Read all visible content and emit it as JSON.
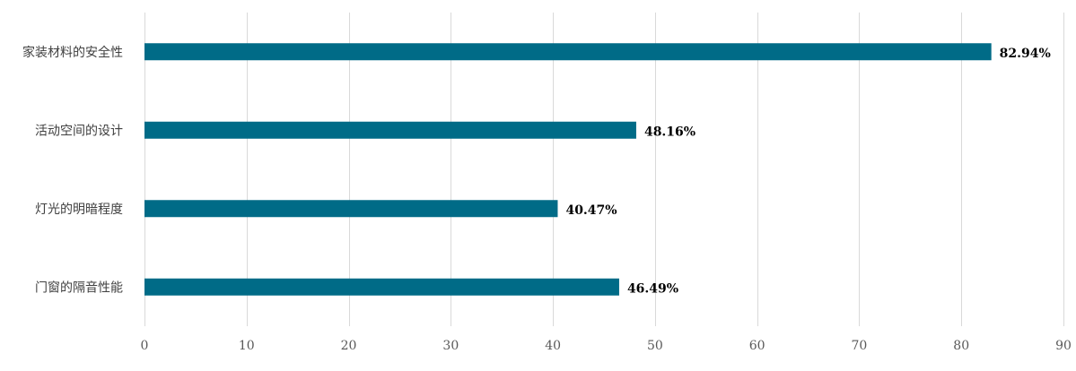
{
  "chart_data": {
    "type": "bar",
    "orientation": "horizontal",
    "categories": [
      "家装材料的安全性",
      "活动空间的设计",
      "灯光的明暗程度",
      "门窗的隔音性能"
    ],
    "values": [
      82.94,
      48.16,
      40.47,
      46.49
    ],
    "data_labels": [
      "82.94%",
      "48.16%",
      "40.47%",
      "46.49%"
    ],
    "x_ticks": [
      "0",
      "10",
      "20",
      "30",
      "40",
      "50",
      "60",
      "70",
      "80",
      "90"
    ],
    "xlim": [
      0,
      90
    ],
    "grid": true,
    "legend": "none",
    "bar_color": "#006b87"
  }
}
